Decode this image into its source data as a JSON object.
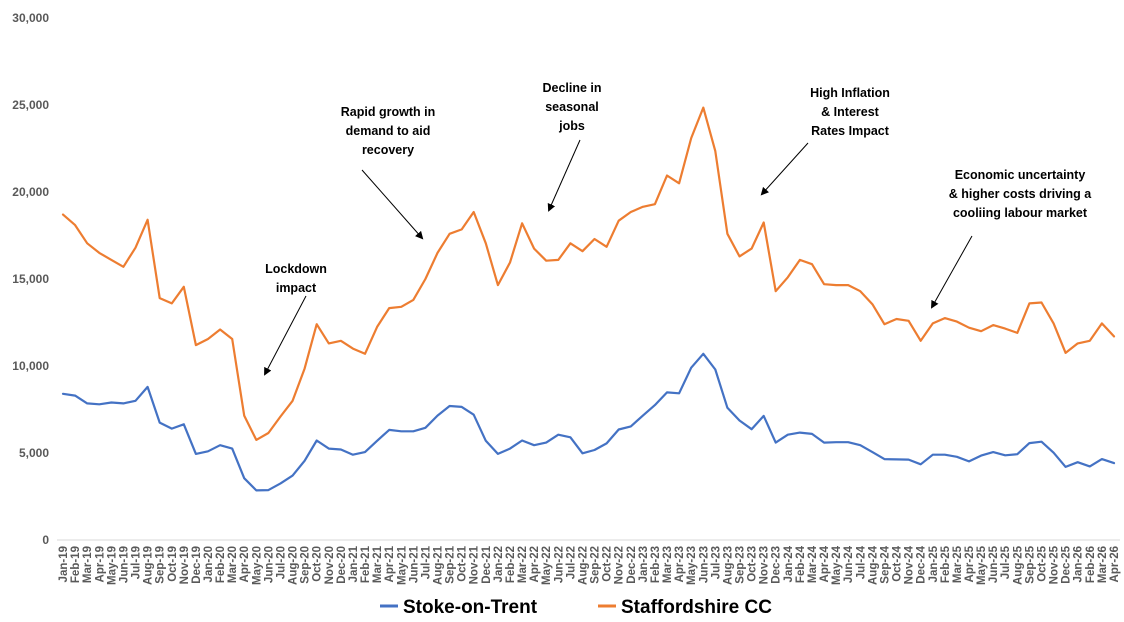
{
  "chart_data": {
    "type": "line",
    "title": "",
    "xlabel": "",
    "ylabel": "",
    "ylim": [
      0,
      30000
    ],
    "yticks": [
      0,
      5000,
      10000,
      15000,
      20000,
      25000,
      30000
    ],
    "ytick_labels": [
      "0",
      "5,000",
      "10,000",
      "15,000",
      "20,000",
      "25,000",
      "30,000"
    ],
    "grid": false,
    "legend_position": "bottom",
    "x": [
      "Jan-19",
      "Feb-19",
      "Mar-19",
      "Apr-19",
      "May-19",
      "Jun-19",
      "Jul-19",
      "Aug-19",
      "Sep-19",
      "Oct-19",
      "Nov-19",
      "Dec-19",
      "Jan-20",
      "Feb-20",
      "Mar-20",
      "Apr-20",
      "May-20",
      "Jun-20",
      "Jul-20",
      "Aug-20",
      "Sep-20",
      "Oct-20",
      "Nov-20",
      "Dec-20",
      "Jan-21",
      "Feb-21",
      "Mar-21",
      "Apr-21",
      "May-21",
      "Jun-21",
      "Jul-21",
      "Aug-21",
      "Sep-21",
      "Oct-21",
      "Nov-21",
      "Dec-21",
      "Jan-22",
      "Feb-22",
      "Mar-22",
      "Apr-22",
      "May-22",
      "Jun-22",
      "Jul-22",
      "Aug-22",
      "Sep-22",
      "Oct-22",
      "Nov-22",
      "Dec-22",
      "Jan-23",
      "Feb-23",
      "Mar-23",
      "Apr-23",
      "May-23",
      "Jun-23",
      "Jul-23",
      "Aug-23",
      "Sep-23",
      "Oct-23",
      "Nov-23",
      "Dec-23",
      "Jan-24",
      "Feb-24",
      "Mar-24",
      "Apr-24",
      "May-24",
      "Jun-24",
      "Jul-24",
      "Aug-24",
      "Sep-24",
      "Oct-24",
      "Nov-24",
      "Dec-24",
      "Jan-25",
      "Feb-25",
      "Mar-25",
      "Apr-25",
      "May-25",
      "Jun-25",
      "Jul-25",
      "Aug-25",
      "Sep-25",
      "Oct-25",
      "Nov-25",
      "Dec-25",
      "Jan-26",
      "Feb-26",
      "Mar-26",
      "Apr-26"
    ],
    "series": [
      {
        "name": "Stoke-on-Trent",
        "color": "#4472C4",
        "values": [
          8400,
          8300,
          7850,
          7800,
          7900,
          7850,
          8000,
          8800,
          6750,
          6400,
          6650,
          4950,
          5100,
          5450,
          5250,
          3550,
          2850,
          2870,
          3250,
          3700,
          4550,
          5720,
          5250,
          5200,
          4900,
          5050,
          5700,
          6330,
          6250,
          6250,
          6450,
          7150,
          7700,
          7650,
          7200,
          5700,
          4950,
          5250,
          5720,
          5450,
          5600,
          6050,
          5900,
          4980,
          5170,
          5550,
          6350,
          6530,
          7150,
          7750,
          8480,
          8430,
          9900,
          10700,
          9800,
          7600,
          6870,
          6370,
          7130,
          5600,
          6050,
          6170,
          6100,
          5600,
          5620,
          5620,
          5450,
          5050,
          4650,
          4630,
          4620,
          4350,
          4900,
          4900,
          4780,
          4520,
          4850,
          5050,
          4870,
          4930,
          5570,
          5650,
          5020,
          4200,
          4470,
          4230,
          4650,
          4420
        ]
      },
      {
        "name": "Staffordshire CC",
        "color": "#ED7D31",
        "values": [
          18700,
          18100,
          17050,
          16500,
          16100,
          15700,
          16800,
          18400,
          13900,
          13600,
          14550,
          11200,
          11550,
          12100,
          11550,
          7150,
          5750,
          6150,
          7100,
          8000,
          9850,
          12400,
          11300,
          11450,
          11000,
          10700,
          12250,
          13330,
          13400,
          13800,
          15000,
          16500,
          17600,
          17850,
          18850,
          17050,
          14650,
          15950,
          18200,
          16750,
          16050,
          16100,
          17050,
          16600,
          17300,
          16850,
          18350,
          18850,
          19150,
          19300,
          20950,
          20500,
          23100,
          24850,
          22350,
          17600,
          16300,
          16750,
          18250,
          14300,
          15100,
          16100,
          15850,
          14700,
          14650,
          14650,
          14300,
          13550,
          12400,
          12700,
          12600,
          11450,
          12450,
          12750,
          12550,
          12200,
          12000,
          12350,
          12150,
          11900,
          13600,
          13650,
          12450,
          10750,
          11300,
          11450,
          12450,
          11700
        ]
      }
    ],
    "annotations": [
      {
        "lines": [
          "Lockdown",
          "impact"
        ]
      },
      {
        "lines": [
          "Rapid growth in",
          "demand to aid",
          "recovery"
        ]
      },
      {
        "lines": [
          "Decline in",
          "seasonal",
          "jobs"
        ]
      },
      {
        "lines": [
          "High Inflation",
          "& Interest",
          "Rates Impact"
        ]
      },
      {
        "lines": [
          "Economic uncertainty",
          "& higher costs driving a",
          "cooliing labour market"
        ]
      }
    ]
  }
}
